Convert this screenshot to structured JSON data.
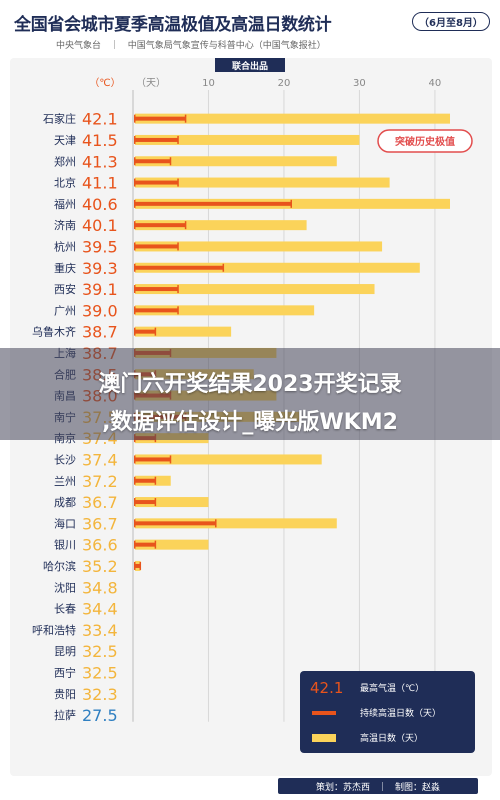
{
  "header": {
    "title": "全国省会城市夏季高温极值及高温日数统计",
    "period": "（6月至8月）",
    "sources": "中央气象台  ｜  中国气象局气象宣传与科普中心（中国气象报社）"
  },
  "overlay": {
    "line1": "澳门六开奖结果2023开奖记录",
    "line2": ",数据评估设计_曝光版WKM2"
  },
  "footer": {
    "planner": "策划：苏杰西",
    "designer": "制图：赵淼"
  },
  "chart_data": {
    "type": "bar",
    "banner": "联合出品",
    "unit_label": "（℃）",
    "days_label": "（天）",
    "xticks": [
      10,
      20,
      30,
      40
    ],
    "xlim": [
      0,
      42
    ],
    "record_note": "突破历史极值",
    "legend": {
      "temp_sample": "42.1",
      "temp_label": "最高气温（℃）",
      "consec_label": "持续高温日数（天）",
      "days_label": "高温日数（天）"
    },
    "colors": {
      "temp": "#e8541c",
      "temp_low": "#f3b53c",
      "temp_blue": "#2f7fc1",
      "consec": "#e8541c",
      "days": "#fbd35a",
      "city": "#1f2d57",
      "record": "#e24d4d"
    },
    "categories": [
      "石家庄",
      "天津",
      "郑州",
      "北京",
      "福州",
      "济南",
      "杭州",
      "重庆",
      "西安",
      "广州",
      "乌鲁木齐",
      "上海",
      "合肥",
      "南昌",
      "南宁",
      "南京",
      "长沙",
      "兰州",
      "成都",
      "海口",
      "银川",
      "哈尔滨",
      "沈阳",
      "长春",
      "呼和浩特",
      "昆明",
      "西宁",
      "贵阳",
      "拉萨"
    ],
    "series": [
      {
        "name": "最高气温（℃）",
        "values": [
          42.1,
          41.5,
          41.3,
          41.1,
          40.6,
          40.1,
          39.5,
          39.3,
          39.1,
          39.0,
          38.7,
          38.7,
          38.5,
          38.0,
          37.5,
          37.4,
          37.4,
          37.2,
          36.7,
          36.7,
          36.6,
          35.2,
          34.8,
          34.4,
          33.4,
          32.5,
          32.5,
          32.3,
          27.5
        ]
      },
      {
        "name": "持续高温日数（天）",
        "values": [
          7,
          6,
          5,
          6,
          21,
          7,
          6,
          12,
          6,
          6,
          3,
          5,
          3,
          5,
          7,
          3,
          5,
          3,
          3,
          11,
          3,
          1,
          0,
          0,
          0,
          0,
          0,
          0,
          0
        ]
      },
      {
        "name": "高温日数（天）",
        "values": [
          42,
          30,
          27,
          34,
          42,
          23,
          33,
          38,
          32,
          24,
          13,
          19,
          16,
          19,
          22,
          10,
          25,
          5,
          10,
          27,
          10,
          1,
          0,
          0,
          0,
          0,
          0,
          0,
          0
        ]
      }
    ],
    "record_cities": [
      "石家庄",
      "天津",
      "郑州",
      "北京",
      "福州",
      "济南"
    ]
  }
}
